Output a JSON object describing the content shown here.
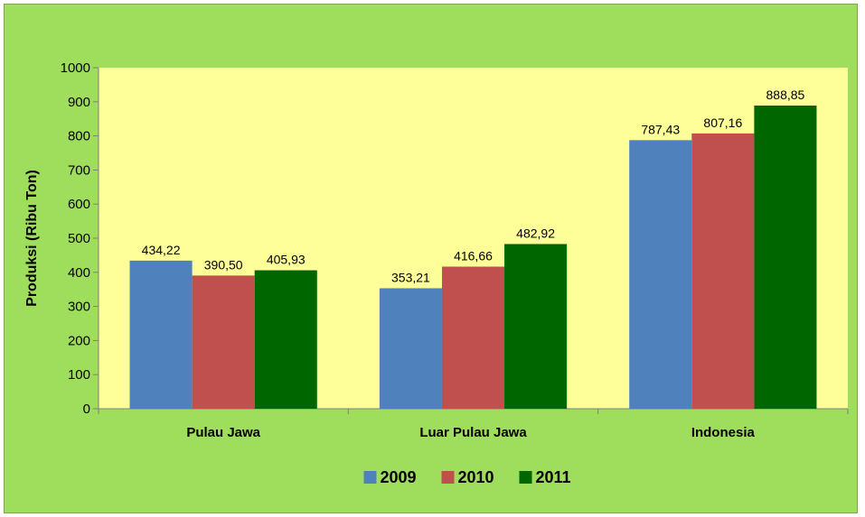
{
  "chart_data": {
    "type": "bar",
    "title": "",
    "xlabel": "",
    "ylabel": "Produksi (Ribu Ton)",
    "ylim": [
      0,
      1000
    ],
    "yticks": [
      "0",
      "100",
      "200",
      "300",
      "400",
      "500",
      "600",
      "700",
      "800",
      "900",
      "1000"
    ],
    "categories": [
      "Pulau Jawa",
      "Luar Pulau Jawa",
      "Indonesia"
    ],
    "series": [
      {
        "name": "2009",
        "color": "#4f81bd",
        "values": [
          434.22,
          353.21,
          787.43
        ],
        "labels": [
          "434,22",
          "353,21",
          "787,43"
        ]
      },
      {
        "name": "2010",
        "color": "#c0504d",
        "values": [
          390.5,
          416.66,
          807.16
        ],
        "labels": [
          "390,50",
          "416,66",
          "807,16"
        ]
      },
      {
        "name": "2011",
        "color": "#006600",
        "values": [
          405.93,
          482.92,
          888.85
        ],
        "labels": [
          "405,93",
          "482,92",
          "888,85"
        ]
      }
    ],
    "legend_position": "bottom",
    "grid": false,
    "colors": {
      "plot_background": "#ffff99",
      "chart_background": "#9fde5d"
    }
  }
}
